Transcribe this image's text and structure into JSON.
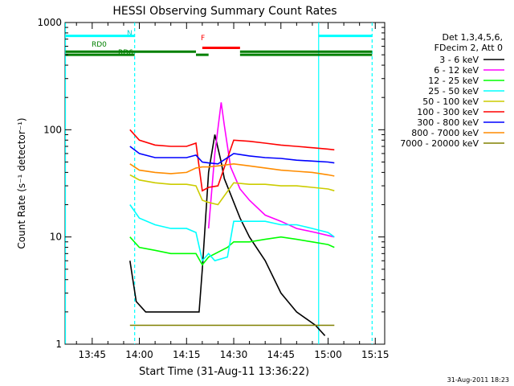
{
  "chart_data": {
    "type": "line",
    "title": "HESSI Observing Summary Count Rates",
    "xlabel": "Start Time (31-Aug-11 13:36:22)",
    "ylabel": "Count Rate (s⁻¹ detector⁻¹)",
    "ylog": true,
    "ylim": [
      1,
      1000
    ],
    "xlim_minutes": [
      816.37,
      918
    ],
    "x_tick_labels": [
      "13:45",
      "14:00",
      "14:15",
      "14:30",
      "14:45",
      "15:00",
      "15:15"
    ],
    "x_ticks_minutes": [
      825,
      840,
      855,
      870,
      885,
      900,
      915
    ],
    "y_tick_labels": [
      "1",
      "10",
      "100",
      "1000"
    ],
    "y_ticks": [
      1,
      10,
      100,
      1000
    ],
    "legend_title": [
      "Det 1,3,4,5,6,",
      "FDecim 2, Att 0"
    ],
    "legend_position": "right",
    "footer_timestamp": "31-Aug-2011 18:23",
    "series": [
      {
        "name": "3 - 6 keV",
        "color": "#000000",
        "x": [
          837,
          839,
          842,
          848,
          855,
          859,
          860,
          862,
          864,
          866,
          867,
          869,
          872,
          875,
          880,
          885,
          890,
          896,
          899
        ],
        "y": [
          6,
          2.5,
          2,
          2,
          2,
          2,
          5,
          40,
          90,
          50,
          35,
          25,
          15,
          10,
          6,
          3,
          2,
          1.5,
          1.2
        ]
      },
      {
        "name": "6 - 12 keV",
        "color": "#ff00ff",
        "x": [
          862,
          864,
          866,
          867,
          869,
          872,
          875,
          880,
          885,
          890,
          896,
          902
        ],
        "y": [
          12,
          60,
          180,
          110,
          45,
          28,
          22,
          16,
          14,
          12,
          11,
          10
        ]
      },
      {
        "name": "12 - 25 keV",
        "color": "#00ff00",
        "x": [
          837,
          840,
          845,
          850,
          855,
          858,
          860,
          862,
          868,
          870,
          875,
          880,
          885,
          890,
          895,
          900,
          902
        ],
        "y": [
          10,
          8,
          7.5,
          7,
          7,
          7,
          5.5,
          6.5,
          8,
          9,
          9,
          9.5,
          10,
          9.5,
          9,
          8.5,
          8
        ]
      },
      {
        "name": "25 - 50 keV",
        "color": "#00ffff",
        "x": [
          837,
          840,
          845,
          850,
          855,
          858,
          860,
          862,
          864,
          868,
          870,
          875,
          880,
          885,
          890,
          895,
          900,
          902
        ],
        "y": [
          20,
          15,
          13,
          12,
          12,
          11,
          6,
          7,
          6,
          6.5,
          14,
          14,
          14,
          13,
          13,
          12,
          11,
          10
        ]
      },
      {
        "name": "50 - 100 keV",
        "color": "#cccc00",
        "x": [
          837,
          840,
          845,
          850,
          855,
          858,
          860,
          862,
          865,
          870,
          875,
          880,
          885,
          890,
          895,
          900,
          902
        ],
        "y": [
          38,
          34,
          32,
          31,
          31,
          30,
          22,
          21,
          20,
          32,
          31,
          31,
          30,
          30,
          29,
          28,
          27
        ]
      },
      {
        "name": "100 - 300 keV",
        "color": "#ff0000",
        "x": [
          837,
          840,
          845,
          850,
          855,
          858,
          860,
          862,
          865,
          870,
          875,
          880,
          885,
          890,
          895,
          900,
          902
        ],
        "y": [
          100,
          80,
          72,
          70,
          70,
          75,
          27,
          29,
          30,
          80,
          78,
          75,
          72,
          70,
          68,
          66,
          65
        ]
      },
      {
        "name": "300 - 800 keV",
        "color": "#0000ff",
        "x": [
          837,
          840,
          845,
          850,
          855,
          858,
          860,
          862,
          865,
          870,
          875,
          880,
          885,
          890,
          895,
          900,
          902
        ],
        "y": [
          70,
          60,
          55,
          55,
          55,
          58,
          50,
          49,
          48,
          60,
          57,
          55,
          54,
          52,
          51,
          50,
          49
        ]
      },
      {
        "name": "800 - 7000 keV",
        "color": "#ff8c00",
        "x": [
          837,
          840,
          845,
          850,
          855,
          858,
          860,
          862,
          865,
          870,
          875,
          880,
          885,
          890,
          895,
          900,
          902
        ],
        "y": [
          48,
          42,
          40,
          39,
          40,
          44,
          45,
          45,
          46,
          48,
          46,
          44,
          42,
          41,
          40,
          38,
          37
        ]
      },
      {
        "name": "7000 - 20000 keV",
        "color": "#808000",
        "x": [
          837,
          845,
          855,
          865,
          875,
          885,
          895,
          902
        ],
        "y": [
          1.5,
          1.5,
          1.5,
          1.5,
          1.5,
          1.5,
          1.5,
          1.5
        ]
      }
    ],
    "vertical_lines_minutes": [
      {
        "x": 816.5,
        "color": "#00ffff",
        "style": "solid"
      },
      {
        "x": 838.5,
        "color": "#00ffff",
        "style": "dashed"
      },
      {
        "x": 897,
        "color": "#00ffff",
        "style": "solid"
      },
      {
        "x": 914,
        "color": "#00ffff",
        "style": "dashed"
      }
    ],
    "annotation_bars": [
      {
        "label": "N",
        "color": "#00ffff",
        "y": 750,
        "segments": [
          [
            816.5,
            838.5
          ],
          [
            897,
            914
          ]
        ]
      },
      {
        "label": "F",
        "color": "#ff0000",
        "y": 580,
        "segments": [
          [
            860,
            872
          ]
        ]
      },
      {
        "label": "RD0",
        "color": "#008000",
        "y": 535,
        "segments": [
          [
            816.5,
            858
          ],
          [
            872,
            914
          ]
        ]
      },
      {
        "label": "RD6",
        "color": "#008000",
        "y": 500,
        "segments": [
          [
            816.5,
            838.5
          ],
          [
            858,
            862
          ],
          [
            872,
            914
          ]
        ]
      }
    ]
  }
}
